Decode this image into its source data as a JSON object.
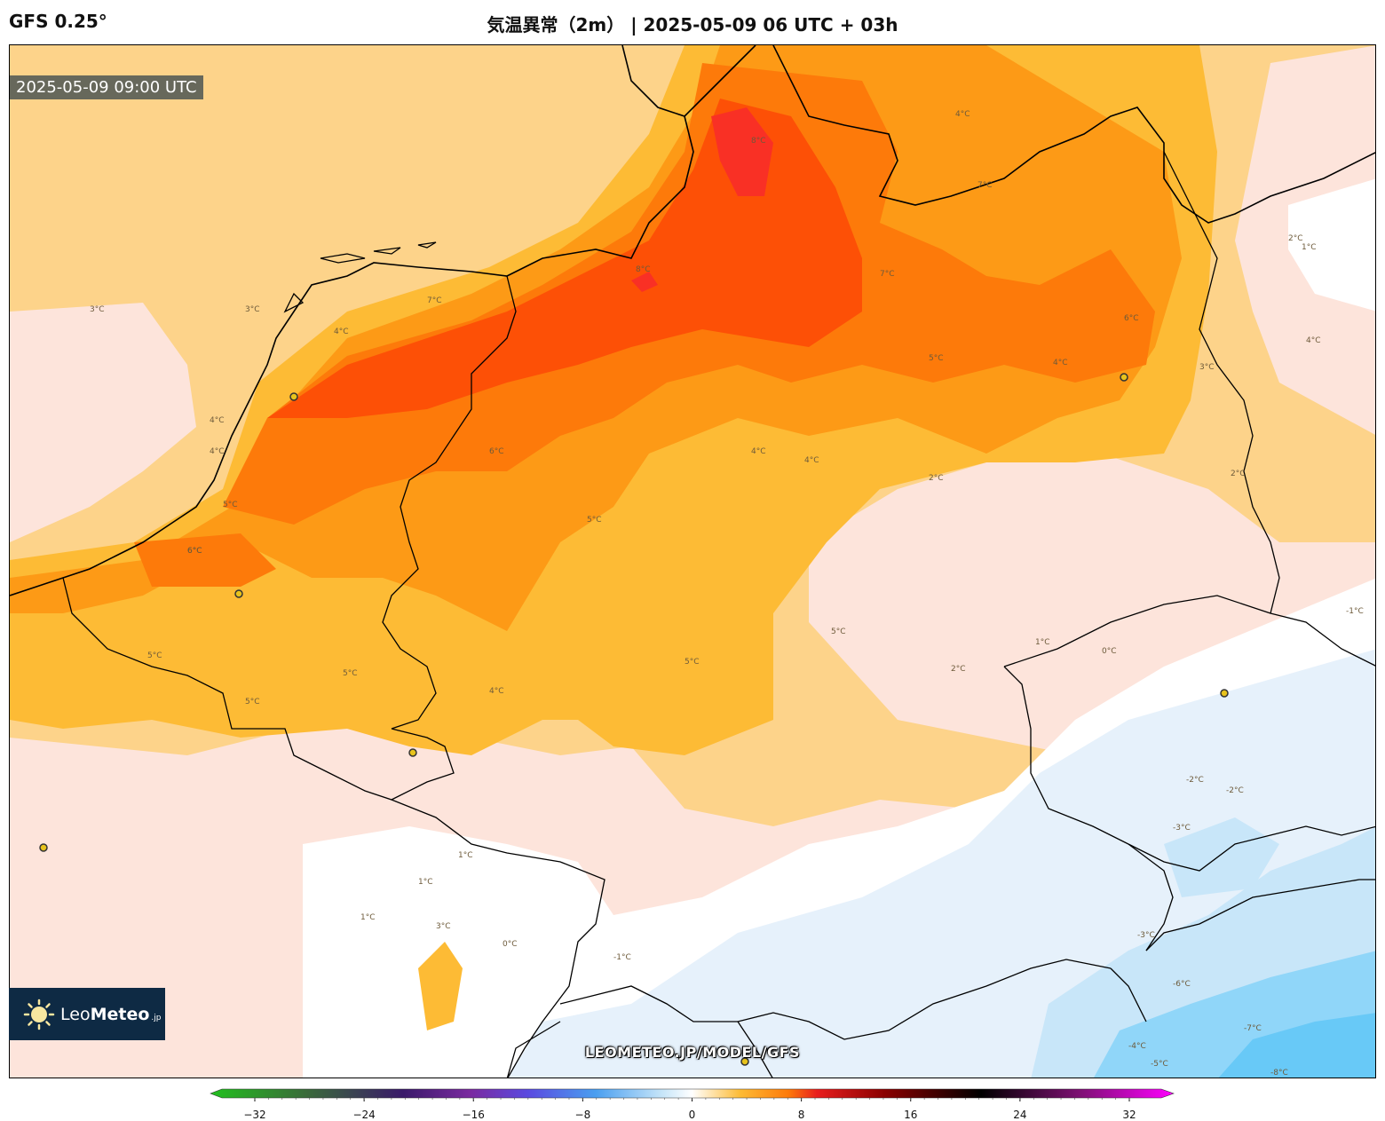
{
  "header": {
    "model": "GFS 0.25°",
    "title": "気温異常（2m） | 2025-05-09 06 UTC + 03h"
  },
  "map": {
    "valid_time": "2025-05-09 09:00 UTC",
    "watermark": "LEOMETEO.JP/MODEL/GFS",
    "contour_labels": [
      "3°C",
      "4°C",
      "4°C",
      "3°C",
      "4°C",
      "5°C",
      "6°C",
      "8°C",
      "7°C",
      "7°C",
      "8°C",
      "7°C",
      "6°C",
      "5°C",
      "4°C",
      "4°C",
      "3°C",
      "2°C",
      "1°C",
      "4°C",
      "6°C",
      "5°C",
      "6°C",
      "5°C",
      "4°C",
      "4°C",
      "5°C",
      "5°C",
      "4°C",
      "5°C",
      "5°C",
      "2°C",
      "2°C",
      "2°C",
      "0°C",
      "1°C",
      "1°C",
      "1°C",
      "1°C",
      "3°C",
      "0°C",
      "-1°C",
      "-2°C",
      "-3°C",
      "-2°C",
      "-3°C",
      "-6°C",
      "-7°C",
      "-8°C",
      "-4°C",
      "-5°C",
      "-1°C"
    ],
    "colors": {
      "ocean_anomaly": "#fdd38a",
      "warm_4": "#fdbb35",
      "warm_5": "#fd9a16",
      "warm_6": "#fd7a0a",
      "warm_7": "#fd5006",
      "warm_8": "#f93025",
      "neutral_pos": "#fde4db",
      "neutral_zero": "#ffffff",
      "cool_1": "#e6f1fb",
      "cool_3": "#c8e6f9",
      "cool_5": "#90d6f9",
      "cool_7": "#68c9f7",
      "border": "#000000",
      "city_marker": "#e8c31c"
    },
    "legend_logo": {
      "brand_light": "Leo",
      "brand_bold": "Meteo",
      "brand_suffix": ".jp",
      "icon": "sun-icon"
    }
  },
  "colorbar": {
    "ticks": [
      "−32",
      "−24",
      "−16",
      "−8",
      "0",
      "8",
      "16",
      "24",
      "32"
    ],
    "min": -32,
    "max": 32
  }
}
